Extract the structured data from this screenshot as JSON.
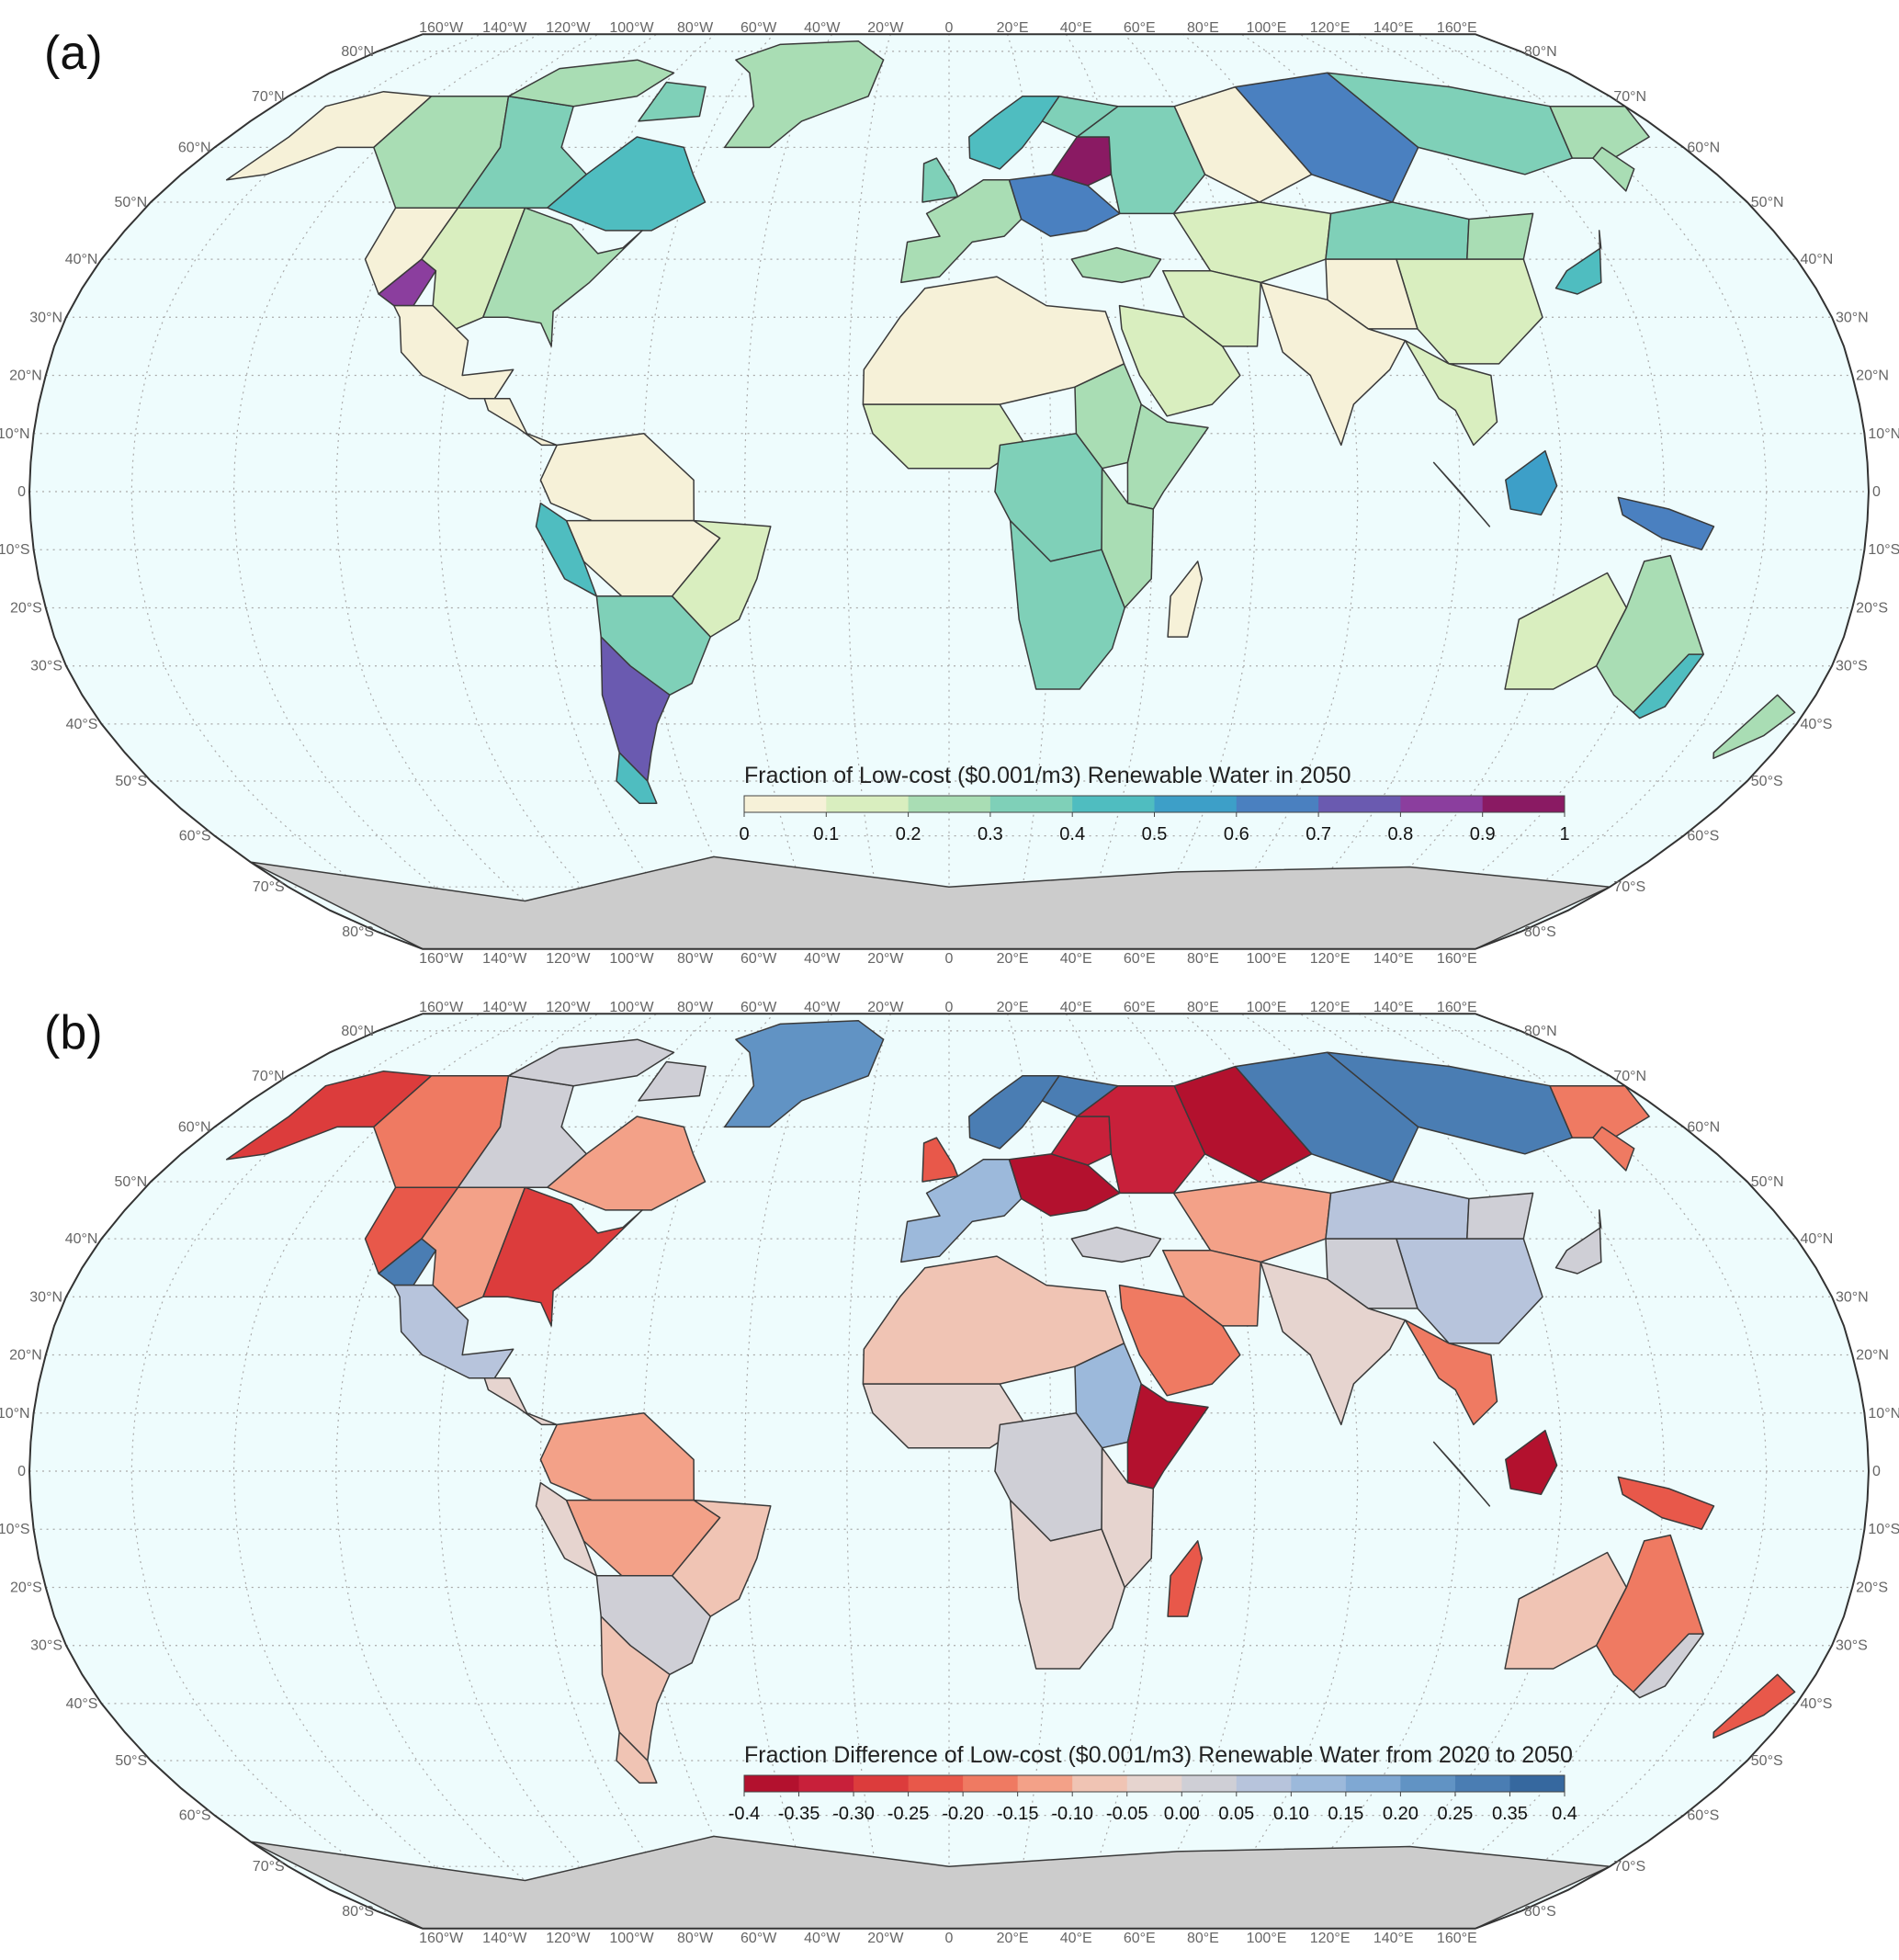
{
  "panel_a": {
    "label": "(a)",
    "legend": {
      "title": "Fraction of Low-cost ($0.001/m3) Renewable Water in 2050",
      "ticks": [
        "0",
        "0.1",
        "0.2",
        "0.3",
        "0.4",
        "0.5",
        "0.6",
        "0.7",
        "0.8",
        "0.9",
        "1"
      ],
      "colors": [
        "#f6f1d8",
        "#d9eebf",
        "#a9ddb4",
        "#7fd0b8",
        "#4fbdc0",
        "#3d9fc8",
        "#4a80c0",
        "#6a5ab0",
        "#8b3e9e",
        "#8a1a63"
      ]
    }
  },
  "panel_b": {
    "label": "(b)",
    "legend": {
      "title": "Fraction Difference of Low-cost ($0.001/m3) Renewable Water from 2020 to 2050",
      "ticks": [
        "-0.4",
        "-0.35",
        "-0.30",
        "-0.25",
        "-0.20",
        "-0.15",
        "-0.10",
        "-0.05",
        "0.00",
        "0.05",
        "0.10",
        "0.15",
        "0.20",
        "0.25",
        "0.35",
        "0.4"
      ],
      "colors": [
        "#b3112e",
        "#c8203a",
        "#dc3c3c",
        "#e8584a",
        "#ef7a62",
        "#f3a188",
        "#f0c4b4",
        "#e6d4cf",
        "#cfcfd6",
        "#b7c4dc",
        "#9cb9db",
        "#7fa8d3",
        "#6193c4",
        "#4a7db3",
        "#36689f"
      ]
    }
  },
  "map": {
    "projection": "Robinson",
    "land_color": "#cccccc",
    "ocean_color": "#eefcfd",
    "lon_labels": [
      "160°W",
      "140°W",
      "120°W",
      "100°W",
      "80°W",
      "60°W",
      "40°W",
      "20°W",
      "0",
      "20°E",
      "40°E",
      "60°E",
      "80°E",
      "100°E",
      "120°E",
      "140°E",
      "160°E"
    ],
    "lat_labels_left": [
      "80°N",
      "70°N",
      "60°N",
      "50°N",
      "40°N",
      "30°N",
      "20°N",
      "10°N",
      "0",
      "10°S",
      "20°S",
      "30°S",
      "40°S",
      "50°S",
      "60°S",
      "70°S",
      "80°S"
    ],
    "lat_labels_right": [
      "80°N",
      "70°N",
      "60°N",
      "50°N",
      "40°N",
      "30°N",
      "20°N",
      "10°N",
      "0",
      "10°S",
      "20°S",
      "30°S",
      "40°S",
      "50°S",
      "60°S",
      "70°S",
      "80°S"
    ]
  }
}
